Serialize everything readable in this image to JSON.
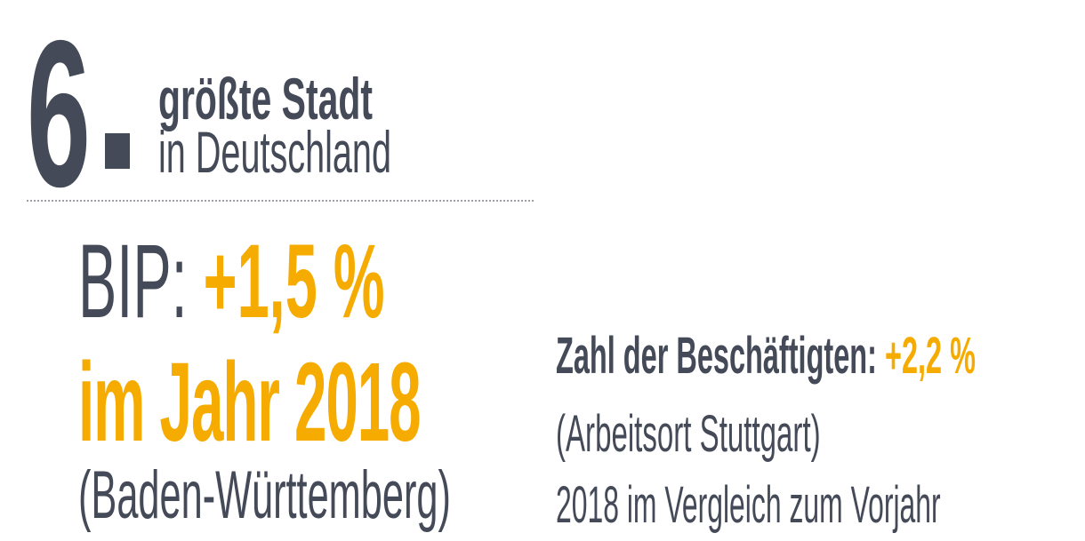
{
  "rank": {
    "number": "6",
    "line1": "größte Stadt",
    "line2": "in Deutschland"
  },
  "gdp": {
    "label": "BIP:",
    "value": "+1,5 %",
    "year_text": "im Jahr 2018",
    "region": "(Baden-Württemberg)"
  },
  "employment": {
    "label": "Zahl der Beschäftigten:",
    "value": "+2,2 %",
    "sub1": "(Arbeitsort Stuttgart)",
    "sub2": "2018 im Vergleich zum Vorjahr"
  },
  "colors": {
    "text_dark": "#454a58",
    "accent": "#f5ab00",
    "divider": "#9a9da6"
  }
}
